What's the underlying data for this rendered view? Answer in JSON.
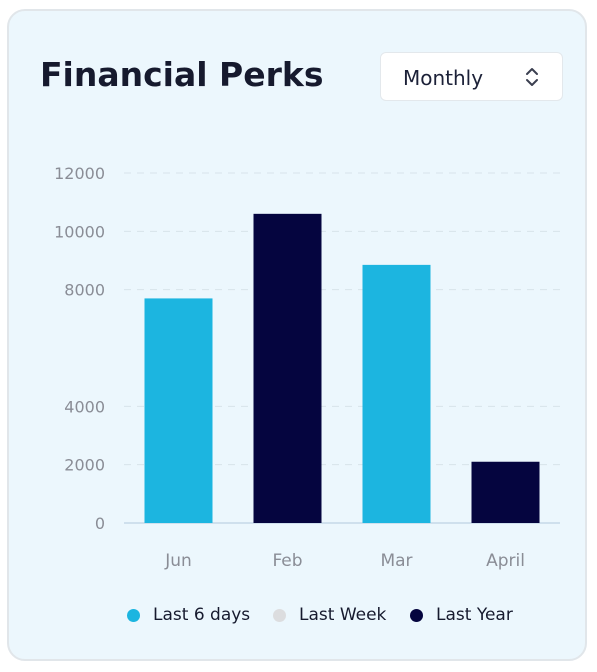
{
  "card": {
    "title": "Financial Perks",
    "period_select": {
      "value": "Monthly",
      "icon": "chevron-up-down-icon"
    }
  },
  "chart_data": {
    "type": "bar",
    "categories": [
      "Jun",
      "Feb",
      "Mar",
      "April"
    ],
    "values": [
      7700,
      10600,
      8850,
      2100
    ],
    "bar_series": [
      "Last 6 days",
      "Last Year",
      "Last 6 days",
      "Last Year"
    ],
    "ylim": [
      0,
      12000
    ],
    "yticks": [
      0,
      2000,
      4000,
      8000,
      10000,
      12000
    ],
    "grid": true,
    "legend_position": "bottom-center",
    "series": [
      {
        "name": "Last 6 days",
        "color": "#1cb5e0"
      },
      {
        "name": "Last Week",
        "color": "#dcdddf"
      },
      {
        "name": "Last Year",
        "color": "#05053f"
      }
    ]
  }
}
